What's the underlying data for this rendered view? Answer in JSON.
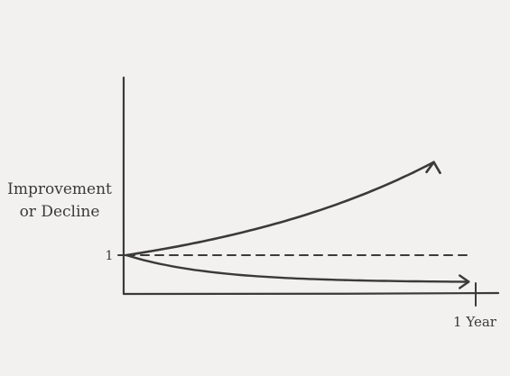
{
  "colors": {
    "background": "#f3f1ef",
    "ink": "#3a3a3a"
  },
  "chart_data": {
    "type": "line",
    "title": "",
    "ylabel_lines": [
      "Improvement",
      "or Decline"
    ],
    "ytick_label": "1",
    "xtick_label": "1 Year",
    "xlim": [
      0,
      1
    ],
    "ylim": [
      0,
      3.5
    ],
    "baseline": 1,
    "curves": [
      {
        "kind": "growth",
        "style": "solid",
        "arrow": true,
        "start": 1,
        "end": 3.4
      },
      {
        "kind": "flat",
        "style": "dashed",
        "arrow": false,
        "start": 1,
        "end": 1
      },
      {
        "kind": "decline",
        "style": "solid",
        "arrow": true,
        "start": 1,
        "end": 0.3
      }
    ],
    "grid": false,
    "legend": "none"
  }
}
